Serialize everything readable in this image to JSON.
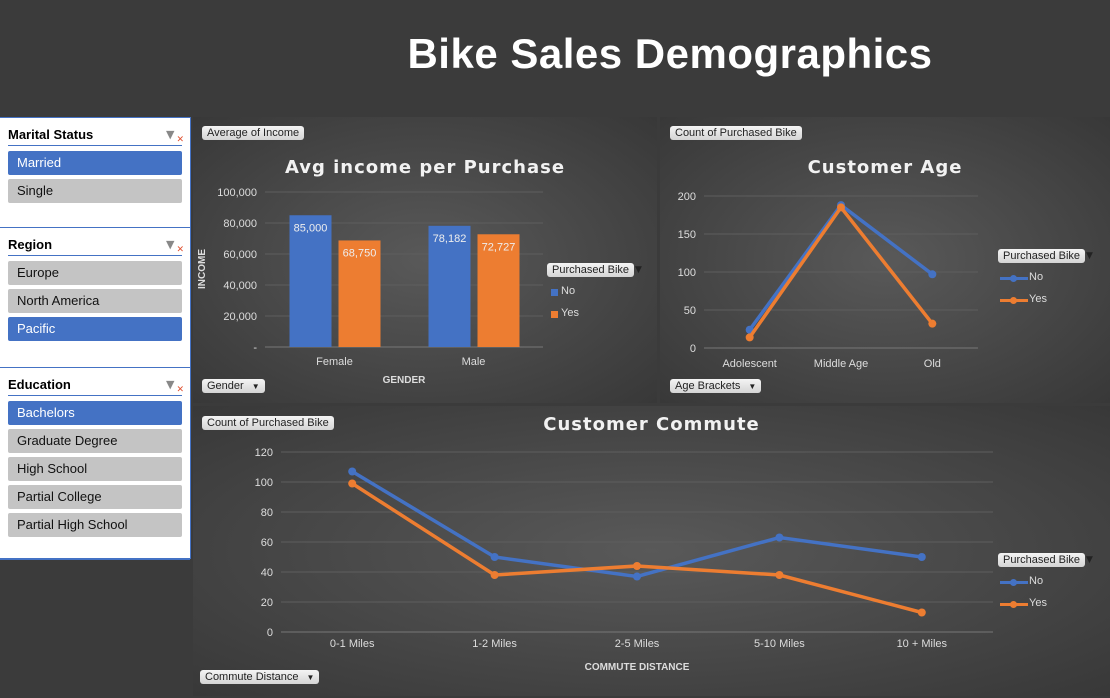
{
  "title": "Bike Sales Demographics",
  "slicers": [
    {
      "title": "Marital Status",
      "items": [
        {
          "label": "Married",
          "selected": true
        },
        {
          "label": "Single",
          "selected": false
        }
      ]
    },
    {
      "title": "Region",
      "items": [
        {
          "label": "Europe",
          "selected": false
        },
        {
          "label": "North America",
          "selected": false
        },
        {
          "label": "Pacific",
          "selected": true
        }
      ]
    },
    {
      "title": "Education",
      "items": [
        {
          "label": "Bachelors",
          "selected": true
        },
        {
          "label": "Graduate Degree",
          "selected": false
        },
        {
          "label": "High School",
          "selected": false
        },
        {
          "label": "Partial College",
          "selected": false
        },
        {
          "label": "Partial High School",
          "selected": false
        }
      ]
    }
  ],
  "colors": {
    "no": "#4472c4",
    "yes": "#ed7d31"
  },
  "chart_data": [
    {
      "type": "bar",
      "title": "Avg income per Purchase",
      "field_button": "Average of Income",
      "axis_button": "Gender",
      "xlabel": "GENDER",
      "ylabel": "INCOME",
      "categories": [
        "Female",
        "Male"
      ],
      "ylim": [
        0,
        100000
      ],
      "yticks": [
        "-",
        "20,000",
        "40,000",
        "60,000",
        "80,000",
        "100,000"
      ],
      "legend_title": "Purchased Bike",
      "legend": "right",
      "series": [
        {
          "name": "No",
          "values": [
            85000,
            78182
          ],
          "labels": [
            "85,000",
            "78,182"
          ]
        },
        {
          "name": "Yes",
          "values": [
            68750,
            72727
          ],
          "labels": [
            "68,750",
            "72,727"
          ]
        }
      ]
    },
    {
      "type": "line",
      "title": "Customer Age",
      "field_button": "Count of Purchased Bike",
      "axis_button": "Age Brackets",
      "categories": [
        "Adolescent",
        "Middle Age",
        "Old"
      ],
      "ylim": [
        0,
        200
      ],
      "yticks": [
        "0",
        "50",
        "100",
        "150",
        "200"
      ],
      "legend_title": "Purchased Bike",
      "legend": "right",
      "series": [
        {
          "name": "No",
          "values": [
            24,
            188,
            97
          ]
        },
        {
          "name": "Yes",
          "values": [
            14,
            185,
            32
          ]
        }
      ]
    },
    {
      "type": "line",
      "title": "Customer Commute",
      "field_button": "Count of Purchased Bike",
      "axis_button": "Commute Distance",
      "xlabel": "COMMUTE DISTANCE",
      "categories": [
        "0-1 Miles",
        "1-2 Miles",
        "2-5 Miles",
        "5-10 Miles",
        "10 + Miles"
      ],
      "ylim": [
        0,
        120
      ],
      "yticks": [
        "0",
        "20",
        "40",
        "60",
        "80",
        "100",
        "120"
      ],
      "legend_title": "Purchased Bike",
      "legend": "right",
      "series": [
        {
          "name": "No",
          "values": [
            107,
            50,
            37,
            63,
            50
          ]
        },
        {
          "name": "Yes",
          "values": [
            99,
            38,
            44,
            38,
            13
          ]
        }
      ]
    }
  ]
}
